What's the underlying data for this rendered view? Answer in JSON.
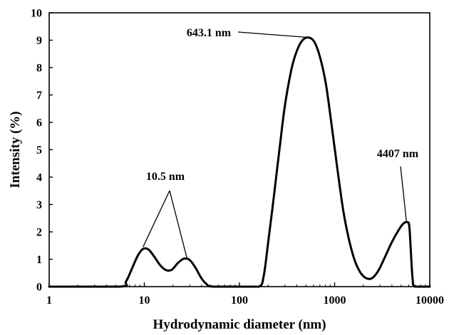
{
  "chart_data": {
    "type": "line",
    "title": "",
    "xlabel": "Hydrodynamic diameter (nm)",
    "ylabel": "Intensity (%)",
    "xscale": "log",
    "xlim": [
      1,
      10000
    ],
    "ylim": [
      0,
      10
    ],
    "grid": false,
    "legend": "none",
    "x_ticks": [
      1,
      10,
      100,
      1000,
      10000
    ],
    "x_tick_labels": [
      "1",
      "10",
      "100",
      "1000",
      "10000"
    ],
    "y_ticks": [
      0,
      1,
      2,
      3,
      4,
      5,
      6,
      7,
      8,
      9,
      10
    ],
    "y_tick_labels": [
      "0",
      "1",
      "2",
      "3",
      "4",
      "5",
      "6",
      "7",
      "8",
      "9",
      "10"
    ],
    "series": [
      {
        "color": "#000000",
        "x": [
          1,
          5.5,
          6.4,
          7.4,
          8.5,
          9.7,
          11.1,
          12.8,
          14.7,
          17,
          19.5,
          22.5,
          26,
          29.8,
          34.4,
          39.6,
          45.5,
          52.5,
          100,
          160,
          180,
          200,
          230,
          265,
          300,
          350,
          400,
          460,
          530,
          610,
          700,
          810,
          930,
          1070,
          1230,
          1420,
          1630,
          1880,
          2170,
          2500,
          2900,
          3350,
          3900,
          4500,
          5200,
          5800,
          6100,
          6350,
          6600,
          7000,
          10000
        ],
        "y": [
          0,
          0,
          0.18,
          0.65,
          1.12,
          1.38,
          1.35,
          1.08,
          0.78,
          0.6,
          0.62,
          0.86,
          1.02,
          0.98,
          0.7,
          0.32,
          0.08,
          0,
          0,
          0,
          0.4,
          1.6,
          3.3,
          5.1,
          6.6,
          7.9,
          8.6,
          9.0,
          9.1,
          8.95,
          8.4,
          7.4,
          5.9,
          4.3,
          2.8,
          1.7,
          0.95,
          0.5,
          0.3,
          0.32,
          0.6,
          1.05,
          1.55,
          1.95,
          2.28,
          2.35,
          2.2,
          1.2,
          0.3,
          0,
          0
        ]
      }
    ],
    "annotations": [
      {
        "text": "643.1 nm",
        "target_x": [
          530
        ],
        "target_y": [
          9.1
        ]
      },
      {
        "text": "10.5 nm",
        "target_x": [
          9.7,
          28
        ],
        "target_y": [
          1.45,
          1.05
        ]
      },
      {
        "text": "4407 nm",
        "target_x": [
          5700
        ],
        "target_y": [
          2.35
        ]
      }
    ]
  }
}
